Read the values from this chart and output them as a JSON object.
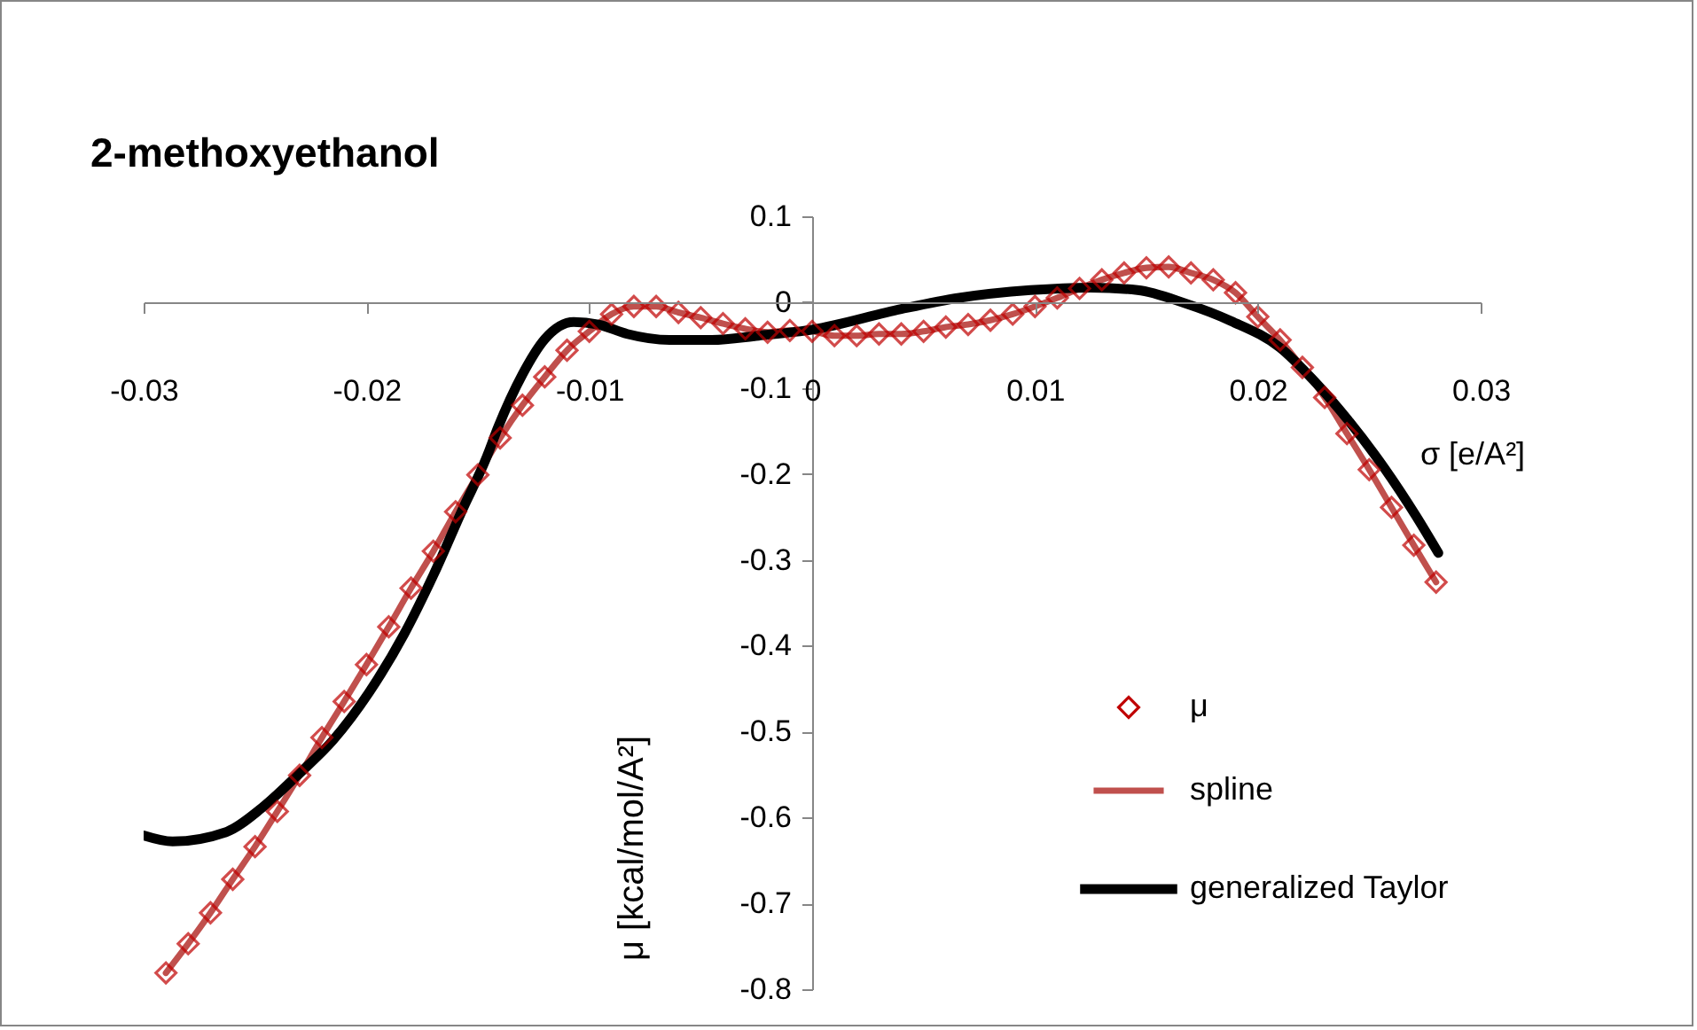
{
  "chart_data": {
    "type": "line",
    "title": "2-methoxyethanol",
    "xlabel": "σ [e/A²]",
    "ylabel": "μ [kcal/mol/A²]",
    "xlim": [
      -0.03,
      0.03
    ],
    "xticks": [
      -0.03,
      -0.02,
      -0.01,
      0,
      0.01,
      0.02,
      0.03
    ],
    "ylim": [
      -0.8,
      0.1
    ],
    "yticks": [
      0.1,
      0,
      -0.1,
      -0.2,
      -0.3,
      -0.4,
      -0.5,
      -0.6,
      -0.7,
      -0.8
    ],
    "grid": false,
    "legend": "bottom right",
    "series": [
      {
        "name": "μ",
        "type": "scatter",
        "marker": "diamond",
        "color": "#c00000",
        "x": [
          -0.029,
          -0.028,
          -0.027,
          -0.026,
          -0.025,
          -0.024,
          -0.023,
          -0.022,
          -0.021,
          -0.02,
          -0.019,
          -0.018,
          -0.017,
          -0.016,
          -0.015,
          -0.014,
          -0.013,
          -0.012,
          -0.011,
          -0.01,
          -0.009,
          -0.008,
          -0.007,
          -0.006,
          -0.005,
          -0.004,
          -0.003,
          -0.002,
          -0.001,
          0,
          0.001,
          0.002,
          0.003,
          0.004,
          0.005,
          0.006,
          0.007,
          0.008,
          0.009,
          0.01,
          0.011,
          0.012,
          0.013,
          0.014,
          0.015,
          0.016,
          0.017,
          0.018,
          0.019,
          0.02,
          0.021,
          0.022,
          0.023,
          0.024,
          0.025,
          0.026,
          0.027,
          0.028
        ],
        "values": [
          -0.781,
          -0.747,
          -0.711,
          -0.672,
          -0.634,
          -0.593,
          -0.551,
          -0.507,
          -0.465,
          -0.422,
          -0.378,
          -0.333,
          -0.29,
          -0.244,
          -0.201,
          -0.158,
          -0.12,
          -0.087,
          -0.056,
          -0.034,
          -0.014,
          -0.005,
          -0.005,
          -0.012,
          -0.018,
          -0.025,
          -0.031,
          -0.035,
          -0.033,
          -0.034,
          -0.039,
          -0.039,
          -0.037,
          -0.037,
          -0.034,
          -0.029,
          -0.026,
          -0.021,
          -0.014,
          -0.005,
          0.005,
          0.016,
          0.026,
          0.034,
          0.04,
          0.041,
          0.034,
          0.026,
          0.011,
          -0.017,
          -0.044,
          -0.076,
          -0.111,
          -0.153,
          -0.195,
          -0.239,
          -0.283,
          -0.326
        ]
      },
      {
        "name": "spline",
        "type": "line",
        "color": "#c0504d",
        "x": [
          -0.029,
          -0.028,
          -0.027,
          -0.026,
          -0.025,
          -0.024,
          -0.023,
          -0.022,
          -0.021,
          -0.02,
          -0.019,
          -0.018,
          -0.017,
          -0.016,
          -0.015,
          -0.014,
          -0.013,
          -0.012,
          -0.011,
          -0.01,
          -0.009,
          -0.008,
          -0.007,
          -0.006,
          -0.005,
          -0.004,
          -0.003,
          -0.002,
          -0.001,
          0,
          0.001,
          0.002,
          0.003,
          0.004,
          0.005,
          0.006,
          0.007,
          0.008,
          0.009,
          0.01,
          0.011,
          0.012,
          0.013,
          0.014,
          0.015,
          0.016,
          0.017,
          0.018,
          0.019,
          0.02,
          0.021,
          0.022,
          0.023,
          0.024,
          0.025,
          0.026,
          0.027,
          0.028
        ],
        "values": [
          -0.781,
          -0.747,
          -0.711,
          -0.672,
          -0.634,
          -0.593,
          -0.551,
          -0.507,
          -0.465,
          -0.422,
          -0.378,
          -0.333,
          -0.29,
          -0.244,
          -0.201,
          -0.158,
          -0.12,
          -0.087,
          -0.056,
          -0.034,
          -0.014,
          -0.005,
          -0.005,
          -0.012,
          -0.018,
          -0.025,
          -0.031,
          -0.035,
          -0.033,
          -0.034,
          -0.039,
          -0.039,
          -0.037,
          -0.037,
          -0.034,
          -0.029,
          -0.026,
          -0.021,
          -0.014,
          -0.005,
          0.005,
          0.016,
          0.026,
          0.034,
          0.04,
          0.041,
          0.034,
          0.026,
          0.011,
          -0.017,
          -0.044,
          -0.076,
          -0.111,
          -0.153,
          -0.195,
          -0.239,
          -0.283,
          -0.326
        ]
      },
      {
        "name": "generalized Taylor",
        "type": "line",
        "color": "#000000",
        "x": [
          -0.03,
          -0.0287,
          -0.0263,
          -0.0247,
          -0.0231,
          -0.0215,
          -0.0199,
          -0.0183,
          -0.017,
          -0.0157,
          -0.0146,
          -0.0141,
          -0.013,
          -0.012,
          -0.0107,
          -0.0096,
          -0.0083,
          -0.0064,
          -0.0045,
          -0.0024,
          0,
          0.004,
          0.0066,
          0.0098,
          0.0125,
          0.0146,
          0.0167,
          0.0188,
          0.021,
          0.0225,
          0.0241,
          0.0257,
          0.0271,
          0.0281
        ],
        "values": [
          -0.621,
          -0.628,
          -0.617,
          -0.589,
          -0.551,
          -0.51,
          -0.455,
          -0.386,
          -0.318,
          -0.242,
          -0.18,
          -0.146,
          -0.084,
          -0.043,
          -0.023,
          -0.026,
          -0.037,
          -0.044,
          -0.044,
          -0.039,
          -0.032,
          -0.008,
          0.005,
          0.014,
          0.017,
          0.014,
          -0.001,
          -0.022,
          -0.053,
          -0.091,
          -0.139,
          -0.194,
          -0.249,
          -0.292
        ]
      }
    ]
  }
}
